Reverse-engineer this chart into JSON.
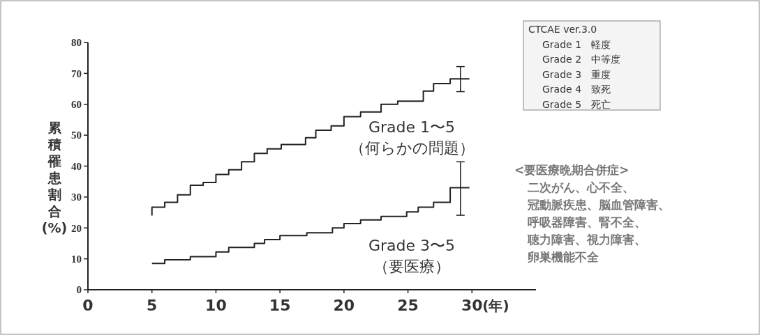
{
  "chart_data": {
    "type": "step",
    "ylabel": "累積罹患割合(%)",
    "xlabel": "(年)",
    "xlim": [
      0,
      35
    ],
    "xticks": [
      0,
      5,
      10,
      15,
      20,
      25,
      30
    ],
    "ylim": [
      0,
      80
    ],
    "yticks": [
      0,
      10,
      20,
      30,
      40,
      50,
      60,
      70,
      80
    ],
    "grid": false,
    "marker": "none",
    "line_style": "solid",
    "series": [
      {
        "name": "Grade 1〜5\n（何らかの問題）",
        "color": "#222222",
        "x": [
          5,
          5,
          6,
          7,
          8,
          9,
          10,
          11,
          12,
          13,
          14,
          15.1,
          17,
          17.8,
          19,
          20,
          21.3,
          22.9,
          24.2,
          26.2,
          27,
          28.3,
          29.1,
          29.8
        ],
        "values": [
          24,
          26.7,
          28.3,
          30.7,
          33.8,
          34.7,
          37.3,
          38.8,
          41.4,
          44.1,
          45.6,
          47,
          49.2,
          51.6,
          53,
          56,
          57.5,
          60,
          61,
          64.3,
          66.7,
          68.2,
          68.2,
          68.2
        ],
        "errors": [
          null,
          null,
          null,
          null,
          null,
          null,
          null,
          null,
          null,
          null,
          null,
          null,
          null,
          null,
          null,
          null,
          null,
          null,
          null,
          null,
          null,
          null,
          [
            64.1,
            72.2
          ],
          null
        ]
      },
      {
        "name": "Grade 3〜5\n（要医療）",
        "color": "#222222",
        "x": [
          5,
          6,
          8,
          10,
          11,
          13,
          13.8,
          15,
          17.1,
          19.1,
          20,
          21.3,
          22.9,
          24.9,
          25.8,
          27,
          28.3,
          29.1,
          29.8
        ],
        "values": [
          8.5,
          9.7,
          10.7,
          12.2,
          13.7,
          15,
          16.2,
          17.5,
          18.4,
          20,
          21.4,
          22.6,
          23.7,
          25.2,
          26.7,
          28.3,
          33,
          33,
          33
        ],
        "errors": [
          null,
          null,
          null,
          null,
          null,
          null,
          null,
          null,
          null,
          null,
          null,
          null,
          null,
          null,
          null,
          null,
          null,
          [
            24.1,
            41.4
          ],
          null
        ]
      }
    ],
    "annotations": [
      "CTCAE ver.3.0",
      "Grade 1　軽度",
      "Grade 2　中等度",
      "Grade 3　重度",
      "Grade 4　致死",
      "Grade 5　死亡",
      "<要医療晩期合併症>",
      "二次がん、心不全、",
      "冠動脈疾患、脳血管障害、",
      "呼吸器障害、腎不全、",
      "聴力障害、視力障害、",
      "卵巣機能不全"
    ]
  }
}
